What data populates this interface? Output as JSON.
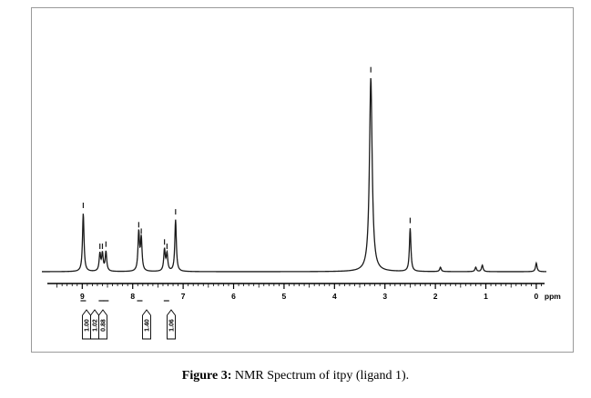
{
  "caption": {
    "prefix": "Figure 3:",
    "text": " NMR Spectrum of itpy (ligand 1)."
  },
  "chart_data": {
    "type": "line",
    "title": "",
    "xlabel": "ppm",
    "ylabel": "",
    "x_reversed": true,
    "xlim": [
      9.8,
      -0.2
    ],
    "ylim": [
      0,
      1
    ],
    "x_ticks": [
      "9",
      "8",
      "7",
      "6",
      "5",
      "4",
      "3",
      "2",
      "1",
      "0"
    ],
    "x_tick_values": [
      9,
      8,
      7,
      6,
      5,
      4,
      3,
      2,
      1,
      0
    ],
    "axis_unit": "ppm",
    "peaks": [
      {
        "ppm": 8.98,
        "height": 0.27
      },
      {
        "ppm": 8.65,
        "height": 0.08
      },
      {
        "ppm": 8.6,
        "height": 0.08
      },
      {
        "ppm": 8.53,
        "height": 0.09
      },
      {
        "ppm": 7.88,
        "height": 0.18
      },
      {
        "ppm": 7.83,
        "height": 0.15
      },
      {
        "ppm": 7.37,
        "height": 0.1
      },
      {
        "ppm": 7.32,
        "height": 0.08
      },
      {
        "ppm": 7.15,
        "height": 0.24
      },
      {
        "ppm": 3.28,
        "height": 0.9
      },
      {
        "ppm": 2.5,
        "height": 0.2
      },
      {
        "ppm": 1.9,
        "height": 0.02
      },
      {
        "ppm": 1.2,
        "height": 0.02
      },
      {
        "ppm": 1.07,
        "height": 0.03
      },
      {
        "ppm": 0.0,
        "height": 0.04
      }
    ],
    "integrals": [
      {
        "label": "1.00",
        "ppm": 8.98
      },
      {
        "label": "1.02",
        "ppm": 8.62
      },
      {
        "label": "0.88",
        "ppm": 8.53
      },
      {
        "label": "1.40",
        "ppm": 7.86
      },
      {
        "label": "1.06",
        "ppm": 7.33
      }
    ]
  },
  "colors": {
    "trace": "#1a1a1a",
    "axis": "#000000",
    "frame": "#9a9a9a"
  }
}
